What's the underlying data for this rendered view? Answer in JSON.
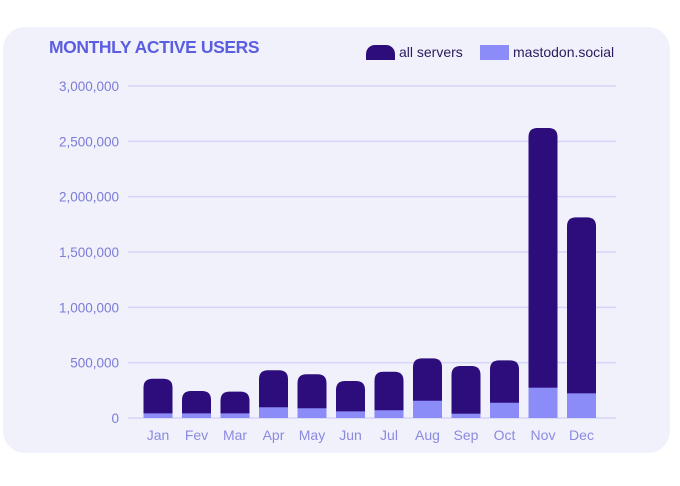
{
  "colors": {
    "all_servers": "#2d0c7b",
    "mastodon_social": "#8b8cf8",
    "gridline": "#d5d4f7",
    "background": "#f1f1fc",
    "title": "#5b5ee0"
  },
  "chart_data": {
    "type": "bar",
    "stacked": "overlay",
    "title": "MONTHLY ACTIVE USERS",
    "xlabel": "",
    "ylabel": "",
    "ylim": [
      0,
      3000000
    ],
    "yticks": [
      0,
      500000,
      1000000,
      1500000,
      2000000,
      2500000,
      3000000
    ],
    "ytick_labels": [
      "0",
      "500,000",
      "1,000,000",
      "1,500,000",
      "2,000,000",
      "2,500,000",
      "3,000,000"
    ],
    "grid": true,
    "legend_position": "top-right",
    "categories": [
      "Jan",
      "Fev",
      "Mar",
      "Apr",
      "May",
      "Jun",
      "Jul",
      "Aug",
      "Sep",
      "Oct",
      "Nov",
      "Dec"
    ],
    "series": [
      {
        "name": "all servers",
        "values": [
          355000,
          244000,
          238000,
          431000,
          395000,
          334000,
          418000,
          539000,
          470000,
          521000,
          2620000,
          1813000
        ]
      },
      {
        "name": "mastodon.social",
        "values": [
          42000,
          42000,
          42000,
          97000,
          88000,
          60000,
          70000,
          156000,
          39000,
          138000,
          274000,
          223000
        ]
      }
    ]
  }
}
